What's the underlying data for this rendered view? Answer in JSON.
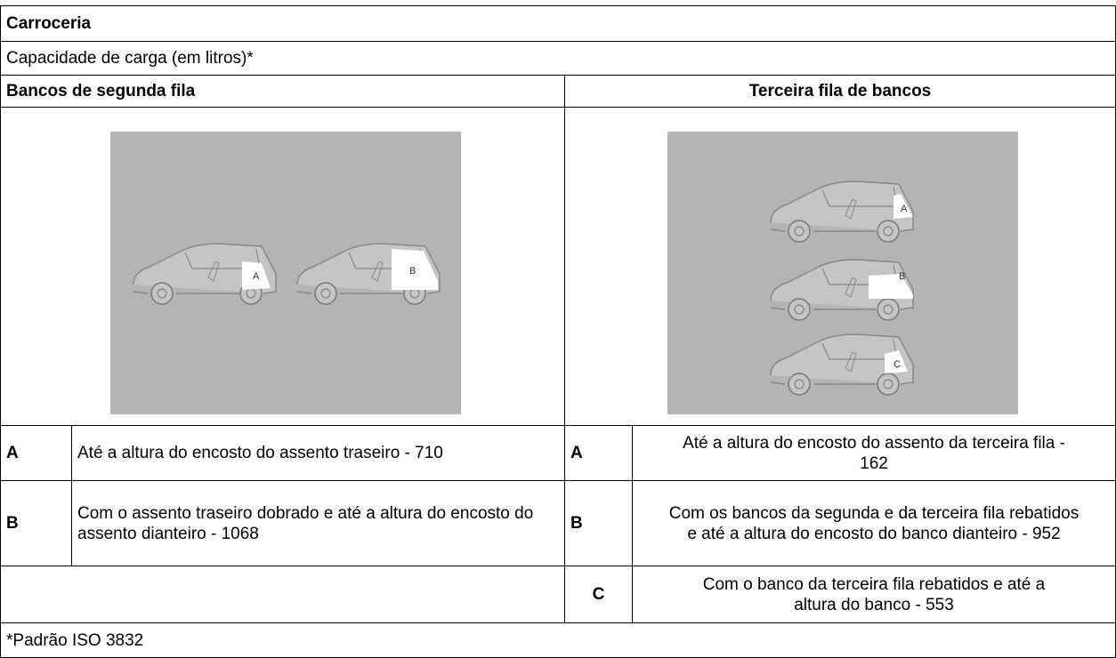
{
  "header": {
    "title": "Carroceria",
    "subtitle": "Capacidade de carga (em litros)*"
  },
  "columns": [
    {
      "title": "Bancos de segunda fila",
      "image_labels": [
        "A",
        "B"
      ],
      "rows": [
        {
          "label": "A",
          "text": "Até a altura do encosto do assento traseiro - 710"
        },
        {
          "label": "B",
          "text": "Com o assento traseiro dobrado e até a altura do encosto do assento dianteiro - 1068"
        }
      ]
    },
    {
      "title": "Terceira fila de bancos",
      "image_labels": [
        "A",
        "B",
        "C"
      ],
      "rows": [
        {
          "label": "A",
          "text": "Até a altura do encosto do assento da terceira fila - 162"
        },
        {
          "label": "B",
          "text": "Com os bancos da segunda e da terceira fila rebatidos e até a altura do encosto do banco dianteiro - 952"
        },
        {
          "label": "C",
          "text": "Com o banco da terceira fila rebatidos e até a altura do banco - 553"
        }
      ]
    }
  ],
  "footnote": "*Padrão ISO 3832"
}
